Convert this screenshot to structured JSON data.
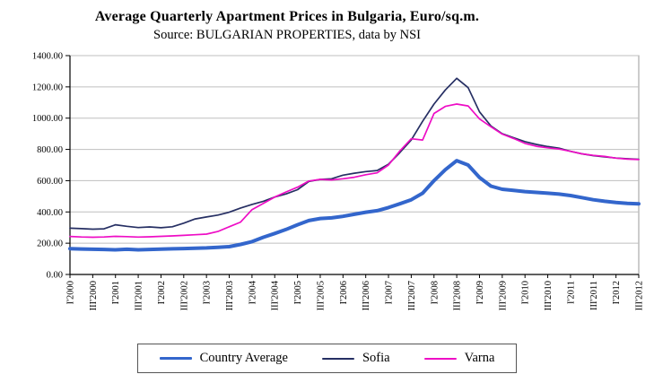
{
  "chart_data": {
    "type": "line",
    "title": "Average Quarterly Apartment Prices in Bulgaria, Euro/sq.m.",
    "subtitle": "Source: BULGARIAN PROPERTIES, data by NSI",
    "ylim": [
      0,
      1400
    ],
    "y_tick_step": 200,
    "y_tick_format_decimals": 2,
    "grid": true,
    "legend_position": "bottom",
    "points_per_tick": 2,
    "x_tick_labels": [
      "I'2000",
      "III'2000",
      "I'2001",
      "III'2001",
      "I'2002",
      "III'2002",
      "I'2003",
      "III'2003",
      "I'2004",
      "III'2004",
      "I'2005",
      "III'2005",
      "I'2006",
      "III'2006",
      "I'2007",
      "III'2007",
      "I'2008",
      "III'2008",
      "I'2009",
      "III'2009",
      "I'2010",
      "III'2010",
      "I'2011",
      "III'2011",
      "I'2012",
      "III'2012"
    ],
    "colors": {
      "grid": "#bfbfbf",
      "axis": "#000000",
      "plot_border": "#999999"
    },
    "series": [
      {
        "name": "Country Average",
        "color": "#3366cc",
        "width": 4,
        "values": [
          165,
          163,
          161,
          160,
          158,
          161,
          158,
          160,
          162,
          164,
          166,
          168,
          170,
          173,
          178,
          192,
          210,
          238,
          262,
          288,
          318,
          345,
          358,
          362,
          372,
          385,
          398,
          408,
          428,
          452,
          478,
          520,
          600,
          670,
          728,
          700,
          620,
          565,
          545,
          538,
          530,
          525,
          520,
          514,
          505,
          492,
          478,
          468,
          460,
          455,
          452
        ]
      },
      {
        "name": "Sofia",
        "color": "#262f63",
        "width": 1.7,
        "values": [
          296,
          293,
          290,
          292,
          318,
          308,
          300,
          304,
          299,
          305,
          328,
          355,
          368,
          380,
          398,
          425,
          448,
          468,
          495,
          515,
          542,
          595,
          608,
          612,
          635,
          648,
          658,
          665,
          705,
          780,
          860,
          980,
          1090,
          1180,
          1255,
          1195,
          1040,
          950,
          900,
          875,
          850,
          832,
          818,
          808,
          788,
          772,
          760,
          752,
          745,
          740,
          737
        ]
      },
      {
        "name": "Varna",
        "color": "#ee0dc5",
        "width": 1.7,
        "values": [
          243,
          240,
          238,
          240,
          244,
          242,
          239,
          241,
          244,
          247,
          250,
          254,
          258,
          275,
          305,
          335,
          415,
          455,
          495,
          528,
          558,
          598,
          608,
          605,
          612,
          622,
          638,
          650,
          700,
          790,
          868,
          860,
          1030,
          1075,
          1090,
          1078,
          995,
          945,
          898,
          870,
          838,
          820,
          810,
          802,
          788,
          772,
          762,
          755,
          744,
          738,
          735
        ]
      }
    ]
  }
}
